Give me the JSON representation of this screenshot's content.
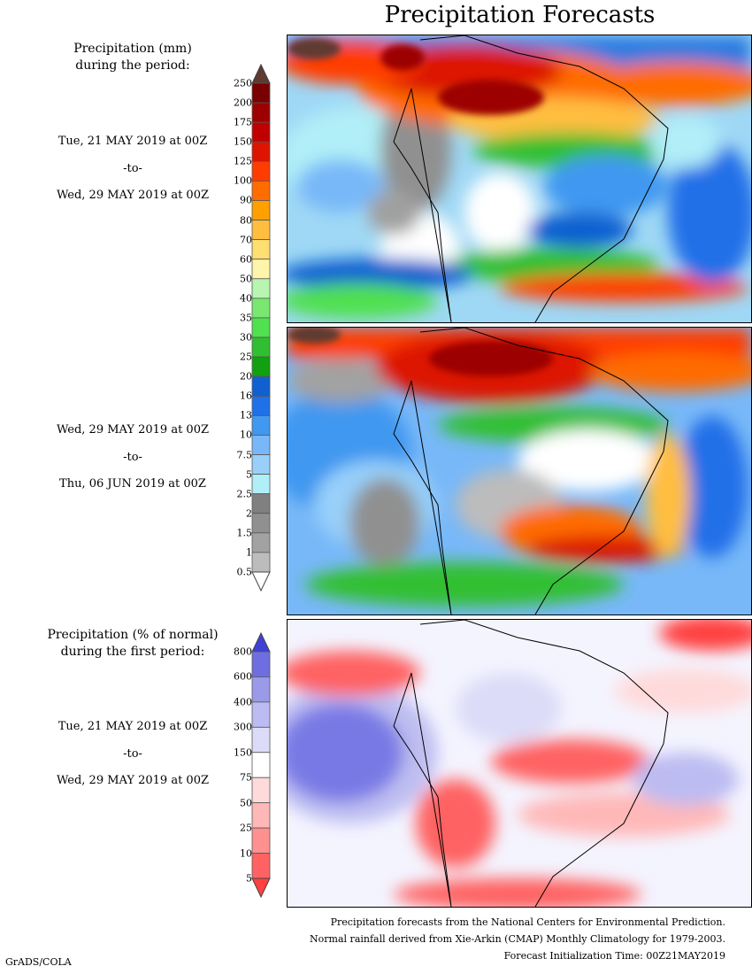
{
  "title": "Precipitation Forecasts",
  "left": {
    "amount_heading": [
      "Precipitation (mm)",
      "during the period:"
    ],
    "period1": {
      "start": "Tue, 21 MAY 2019 at 00Z",
      "sep": "-to-",
      "end": "Wed, 29 MAY 2019 at 00Z"
    },
    "period2": {
      "start": "Wed, 29 MAY 2019 at 00Z",
      "sep": "-to-",
      "end": "Thu, 06 JUN 2019 at 00Z"
    },
    "pct_heading": [
      "Precipitation (% of normal)",
      "during the first period:"
    ],
    "period3": {
      "start": "Tue, 21 MAY 2019 at 00Z",
      "sep": "-to-",
      "end": "Wed, 29 MAY 2019 at 00Z"
    }
  },
  "colorbar_mm": {
    "labels": [
      "250",
      "200",
      "175",
      "150",
      "125",
      "100",
      "90",
      "80",
      "70",
      "60",
      "50",
      "40",
      "35",
      "30",
      "25",
      "20",
      "16",
      "13",
      "10",
      "7.5",
      "5",
      "2.5",
      "2",
      "1.5",
      "1",
      "0.5"
    ],
    "colors": [
      "#780000",
      "#9c0000",
      "#c00000",
      "#dc1400",
      "#ff3c00",
      "#ff6c00",
      "#ffa000",
      "#ffbe40",
      "#ffdf70",
      "#fff5aa",
      "#b8f5b0",
      "#78e870",
      "#50e050",
      "#30bf30",
      "#10a010",
      "#1060d0",
      "#2070e8",
      "#4098f0",
      "#78b8f8",
      "#98d0fa",
      "#b0eef8",
      "#808080",
      "#909090",
      "#a2a2a2",
      "#bcbcbc"
    ],
    "over_color": "#5e3a30",
    "under_color": "#ffffff"
  },
  "colorbar_pct": {
    "labels": [
      "800",
      "600",
      "400",
      "300",
      "150",
      "75",
      "50",
      "25",
      "10",
      "5"
    ],
    "colors": [
      "#6e6ee0",
      "#9a9ae8",
      "#bcbcf2",
      "#dcdcf8",
      "#ffffff",
      "#ffdada",
      "#ffb8b8",
      "#ff9090",
      "#ff6262"
    ],
    "over_color": "#4040d8",
    "under_color": "#ff4040"
  },
  "footer": [
    "Precipitation forecasts from the National Centers for Environmental Prediction.",
    "Normal rainfall derived from Xie-Arkin (CMAP) Monthly Climatology for 1979-2003.",
    "Forecast Initialization Time: 00Z21MAY2019"
  ],
  "credit": "GrADS/COLA"
}
